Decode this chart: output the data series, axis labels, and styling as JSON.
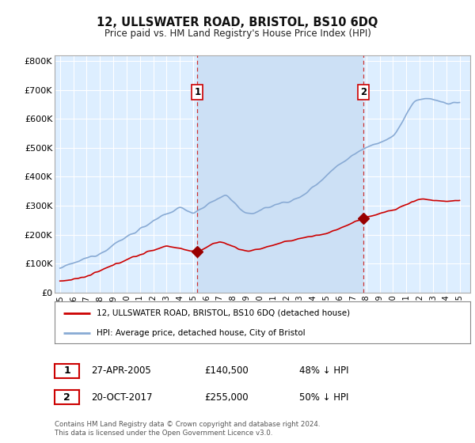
{
  "title": "12, ULLSWATER ROAD, BRISTOL, BS10 6DQ",
  "subtitle": "Price paid vs. HM Land Registry's House Price Index (HPI)",
  "background_color": "#ffffff",
  "plot_bg_color": "#ddeeff",
  "highlight_bg_color": "#cce0f5",
  "grid_color": "#ffffff",
  "red_line_color": "#cc0000",
  "blue_line_color": "#88aad4",
  "marker_color": "#990000",
  "vline_color": "#cc3333",
  "ylim": [
    0,
    820000
  ],
  "yticks": [
    0,
    100000,
    200000,
    300000,
    400000,
    500000,
    600000,
    700000,
    800000
  ],
  "ytick_labels": [
    "£0",
    "£100K",
    "£200K",
    "£300K",
    "£400K",
    "£500K",
    "£600K",
    "£700K",
    "£800K"
  ],
  "xlim_left": 1994.6,
  "xlim_right": 2025.8,
  "sale1_year": 2005.32,
  "sale1_price": 140500,
  "sale1_label": "1",
  "sale2_year": 2017.8,
  "sale2_price": 255000,
  "sale2_label": "2",
  "legend_entry1": "12, ULLSWATER ROAD, BRISTOL, BS10 6DQ (detached house)",
  "legend_entry2": "HPI: Average price, detached house, City of Bristol",
  "table_row1_num": "1",
  "table_row1_date": "27-APR-2005",
  "table_row1_price": "£140,500",
  "table_row1_hpi": "48% ↓ HPI",
  "table_row2_num": "2",
  "table_row2_date": "20-OCT-2017",
  "table_row2_price": "£255,000",
  "table_row2_hpi": "50% ↓ HPI",
  "footer": "Contains HM Land Registry data © Crown copyright and database right 2024.\nThis data is licensed under the Open Government Licence v3.0."
}
